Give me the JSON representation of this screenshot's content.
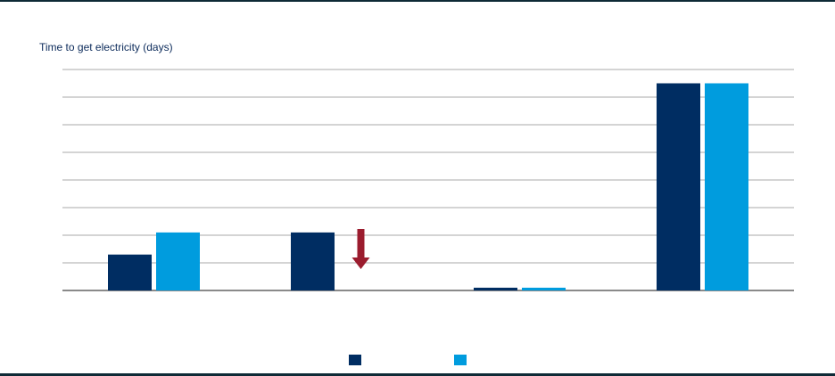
{
  "chart_data": {
    "type": "bar",
    "title": "",
    "ylabel": "Time to get electricity (days)",
    "xlabel": "",
    "categories": [
      "",
      "",
      "",
      ""
    ],
    "ylim": [
      0,
      8
    ],
    "gridlines": 8,
    "series": [
      {
        "name": "",
        "color": "#002d62",
        "values": [
          1.3,
          2.1,
          0.1,
          7.5
        ]
      },
      {
        "name": "",
        "color": "#009cde",
        "values": [
          2.1,
          null,
          0.1,
          7.5
        ]
      }
    ],
    "annotations": [
      {
        "type": "down-arrow",
        "category_index": 1,
        "color": "#9b1c2e"
      }
    ],
    "legend": "bottom-center"
  }
}
